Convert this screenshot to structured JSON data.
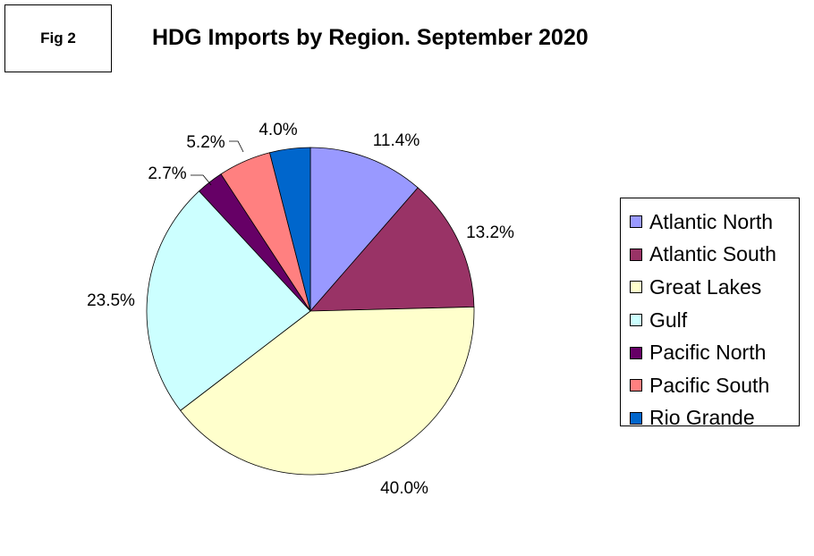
{
  "fig_label": "Fig 2",
  "chart_data": {
    "type": "pie",
    "title": "HDG Imports by Region. September 2020",
    "legend_placement": "right",
    "slices": [
      {
        "name": "Atlantic North",
        "value": 11.4,
        "label": "11.4%",
        "color": "#9999ff"
      },
      {
        "name": "Atlantic South",
        "value": 13.2,
        "label": "13.2%",
        "color": "#993366"
      },
      {
        "name": "Great Lakes",
        "value": 40.0,
        "label": "40.0%",
        "color": "#ffffcc"
      },
      {
        "name": "Gulf",
        "value": 23.5,
        "label": "23.5%",
        "color": "#ccffff"
      },
      {
        "name": "Pacific North",
        "value": 2.7,
        "label": "2.7%",
        "color": "#660066"
      },
      {
        "name": "Pacific South",
        "value": 5.2,
        "label": "5.2%",
        "color": "#ff8080"
      },
      {
        "name": "Rio Grande",
        "value": 4.0,
        "label": "4.0%",
        "color": "#0066cc"
      }
    ]
  }
}
